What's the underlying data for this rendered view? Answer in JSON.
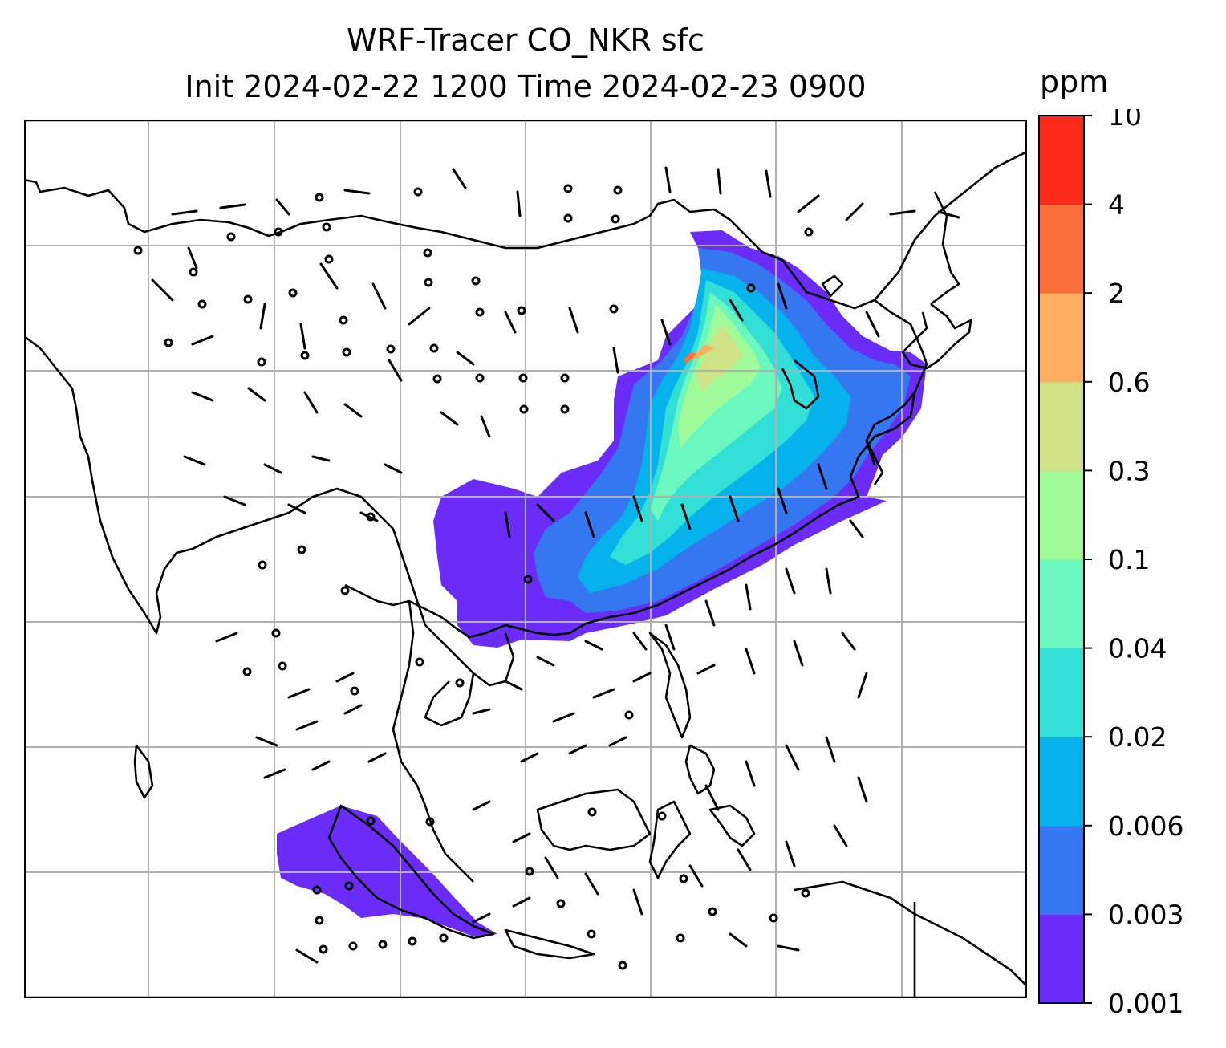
{
  "title": {
    "line1": "WRF-Tracer CO_NKR sfc",
    "line2": "Init 2024-02-22 1200 Time 2024-02-23 0900"
  },
  "colorbar": {
    "unit": "ppm",
    "levels": [
      "0.001",
      "0.003",
      "0.006",
      "0.02",
      "0.04",
      "0.1",
      "0.3",
      "0.6",
      "2",
      "4",
      "10"
    ],
    "colors": [
      "#6a2cf6",
      "#3477f0",
      "#05b2ec",
      "#31dfd6",
      "#6bf8bf",
      "#9ffb9a",
      "#cfe288",
      "#fdae60",
      "#fd6f3a",
      "#fc2a18"
    ]
  },
  "map": {
    "region": "East / Southeast Asia",
    "gridlines": true,
    "coastline_color": "#000000",
    "wind_barbs": true
  }
}
